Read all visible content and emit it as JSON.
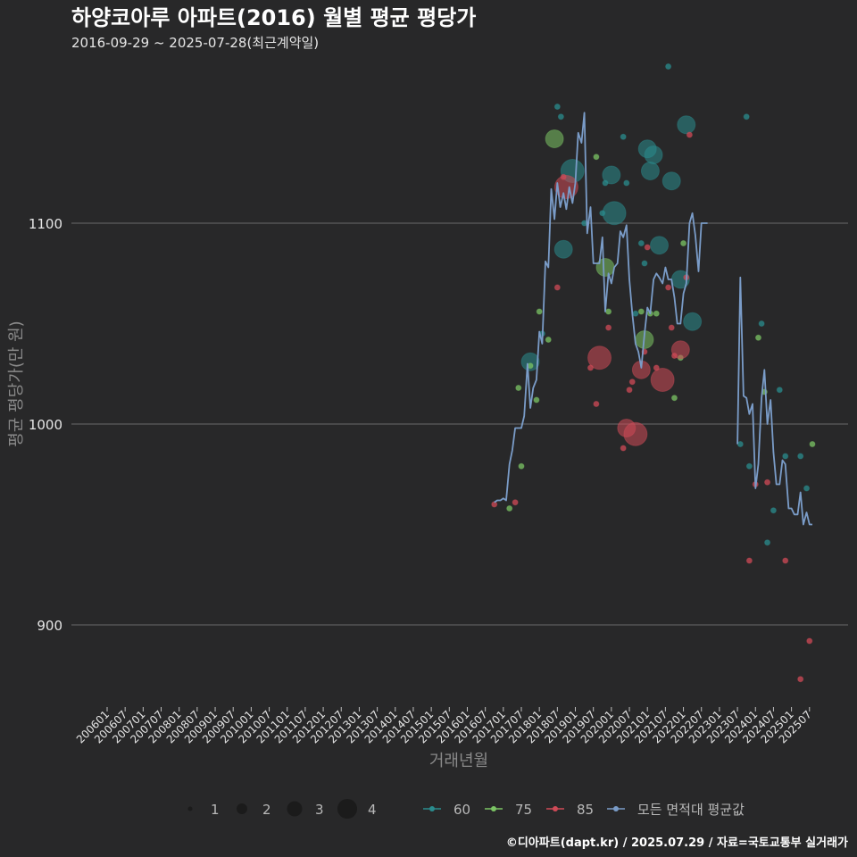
{
  "chart_data": {
    "type": "scatter",
    "title": "하양코아루 아파트(2016) 월별 평균 평당가",
    "subtitle": "2016-09-29 ~ 2025-07-28(최근계약일)",
    "xlabel": "거래년월",
    "ylabel": "평균 평당가(만 원)",
    "ylim": [
      860,
      1180
    ],
    "yticks": [
      900,
      1000,
      1100
    ],
    "x_tick_labels": [
      "200601",
      "200607",
      "200701",
      "200707",
      "200801",
      "200807",
      "200901",
      "200907",
      "201001",
      "201007",
      "201101",
      "201107",
      "201201",
      "201207",
      "201301",
      "201307",
      "201401",
      "201407",
      "201501",
      "201507",
      "201601",
      "201607",
      "201701",
      "201707",
      "201801",
      "201807",
      "201901",
      "201907",
      "202001",
      "202007",
      "202101",
      "202107",
      "202201",
      "202207",
      "202301",
      "202307",
      "202401",
      "202407",
      "202501",
      "202507"
    ],
    "size_legend": {
      "values": [
        1,
        2,
        3,
        4
      ]
    },
    "color_legend": [
      {
        "name": "60",
        "color": "#2a8c8e"
      },
      {
        "name": "75",
        "color": "#7bc464"
      },
      {
        "name": "85",
        "color": "#d04a57"
      },
      {
        "name": "모든 면적대 평균값",
        "color": "#7a9cc8"
      }
    ],
    "series": [
      {
        "name": "60",
        "color": "#2a8c8e",
        "points": [
          [
            2017.75,
            1031,
            3
          ],
          [
            2018.08,
            1045,
            1
          ],
          [
            2018.5,
            1158,
            1
          ],
          [
            2018.6,
            1153,
            1
          ],
          [
            2018.67,
            1087,
            3
          ],
          [
            2018.92,
            1126,
            4
          ],
          [
            2019.25,
            1100,
            1
          ],
          [
            2019.75,
            1105,
            1
          ],
          [
            2019.83,
            1120,
            1
          ],
          [
            2020.0,
            1124,
            3
          ],
          [
            2020.08,
            1105,
            4
          ],
          [
            2020.33,
            1143,
            1
          ],
          [
            2020.42,
            1120,
            1
          ],
          [
            2020.67,
            1055,
            1
          ],
          [
            2020.83,
            1090,
            1
          ],
          [
            2020.92,
            1080,
            1
          ],
          [
            2021.0,
            1137,
            3
          ],
          [
            2021.08,
            1126,
            3
          ],
          [
            2021.17,
            1134,
            3
          ],
          [
            2021.33,
            1089,
            3
          ],
          [
            2021.58,
            1178,
            1
          ],
          [
            2021.67,
            1121,
            3
          ],
          [
            2021.92,
            1072,
            3
          ],
          [
            2022.08,
            1149,
            3
          ],
          [
            2022.25,
            1051,
            3
          ],
          [
            2023.58,
            990,
            1
          ],
          [
            2023.75,
            1153,
            1
          ],
          [
            2023.83,
            979,
            1
          ],
          [
            2024.17,
            1050,
            1
          ],
          [
            2024.33,
            941,
            1
          ],
          [
            2024.5,
            957,
            1
          ],
          [
            2024.67,
            1017,
            1
          ],
          [
            2024.83,
            984,
            1
          ],
          [
            2025.25,
            984,
            1
          ],
          [
            2025.42,
            968,
            1
          ]
        ]
      },
      {
        "name": "75",
        "color": "#7bc464",
        "points": [
          [
            2017.17,
            958,
            1
          ],
          [
            2017.42,
            1018,
            1
          ],
          [
            2017.5,
            979,
            1
          ],
          [
            2017.75,
            1029,
            1
          ],
          [
            2017.92,
            1012,
            1
          ],
          [
            2018.0,
            1056,
            1
          ],
          [
            2018.25,
            1042,
            1
          ],
          [
            2018.42,
            1142,
            3
          ],
          [
            2019.58,
            1133,
            1
          ],
          [
            2019.83,
            1078,
            3
          ],
          [
            2019.92,
            1056,
            1
          ],
          [
            2020.83,
            1056,
            1
          ],
          [
            2020.92,
            1042,
            3
          ],
          [
            2021.08,
            1055,
            1
          ],
          [
            2021.25,
            1055,
            1
          ],
          [
            2021.75,
            1013,
            1
          ],
          [
            2021.92,
            1033,
            1
          ],
          [
            2022.0,
            1090,
            1
          ],
          [
            2024.08,
            1043,
            1
          ],
          [
            2024.25,
            1016,
            1
          ],
          [
            2025.58,
            990,
            1
          ]
        ]
      },
      {
        "name": "85",
        "color": "#d04a57",
        "points": [
          [
            2016.75,
            960,
            1
          ],
          [
            2017.33,
            961,
            1
          ],
          [
            2018.5,
            1068,
            1
          ],
          [
            2018.67,
            1123,
            1
          ],
          [
            2018.75,
            1118,
            4
          ],
          [
            2019.42,
            1028,
            1
          ],
          [
            2019.58,
            1010,
            1
          ],
          [
            2019.67,
            1033,
            4
          ],
          [
            2019.92,
            1048,
            1
          ],
          [
            2020.33,
            988,
            1
          ],
          [
            2020.42,
            998,
            3
          ],
          [
            2020.5,
            1017,
            1
          ],
          [
            2020.58,
            1021,
            1
          ],
          [
            2020.67,
            995,
            4
          ],
          [
            2020.83,
            1027,
            3
          ],
          [
            2020.92,
            1036,
            1
          ],
          [
            2021.0,
            1088,
            1
          ],
          [
            2021.25,
            1028,
            1
          ],
          [
            2021.42,
            1022,
            4
          ],
          [
            2021.58,
            1068,
            1
          ],
          [
            2021.67,
            1048,
            1
          ],
          [
            2021.75,
            1034,
            1
          ],
          [
            2021.92,
            1037,
            3
          ],
          [
            2022.08,
            1073,
            1
          ],
          [
            2022.17,
            1144,
            1
          ],
          [
            2023.83,
            932,
            1
          ],
          [
            2024.0,
            970,
            1
          ],
          [
            2024.33,
            971,
            1
          ],
          [
            2024.83,
            932,
            1
          ],
          [
            2025.25,
            873,
            1
          ],
          [
            2025.5,
            892,
            1
          ]
        ]
      }
    ],
    "average_series": {
      "name": "모든 면적대 평균값",
      "color": "#7a9cc8",
      "segments": [
        [
          [
            2016.75,
            961
          ],
          [
            2016.83,
            962
          ],
          [
            2016.92,
            962
          ],
          [
            2017.0,
            963
          ],
          [
            2017.08,
            962
          ],
          [
            2017.17,
            980
          ],
          [
            2017.25,
            987
          ],
          [
            2017.33,
            998
          ],
          [
            2017.42,
            998
          ],
          [
            2017.5,
            998
          ],
          [
            2017.58,
            1004
          ],
          [
            2017.67,
            1030
          ],
          [
            2017.75,
            1008
          ],
          [
            2017.83,
            1018
          ],
          [
            2017.92,
            1022
          ],
          [
            2018.0,
            1046
          ],
          [
            2018.08,
            1040
          ],
          [
            2018.17,
            1081
          ],
          [
            2018.25,
            1078
          ],
          [
            2018.33,
            1117
          ],
          [
            2018.42,
            1102
          ],
          [
            2018.5,
            1120
          ],
          [
            2018.58,
            1108
          ],
          [
            2018.67,
            1115
          ],
          [
            2018.75,
            1107
          ],
          [
            2018.83,
            1118
          ],
          [
            2018.92,
            1110
          ],
          [
            2019.0,
            1120
          ],
          [
            2019.08,
            1145
          ],
          [
            2019.17,
            1140
          ],
          [
            2019.25,
            1155
          ],
          [
            2019.33,
            1095
          ],
          [
            2019.42,
            1108
          ],
          [
            2019.5,
            1080
          ],
          [
            2019.58,
            1080
          ],
          [
            2019.67,
            1080
          ],
          [
            2019.75,
            1093
          ],
          [
            2019.83,
            1056
          ],
          [
            2019.92,
            1075
          ],
          [
            2020.0,
            1070
          ],
          [
            2020.08,
            1078
          ],
          [
            2020.17,
            1080
          ],
          [
            2020.25,
            1096
          ],
          [
            2020.33,
            1093
          ],
          [
            2020.42,
            1099
          ],
          [
            2020.5,
            1072
          ],
          [
            2020.58,
            1055
          ],
          [
            2020.67,
            1040
          ],
          [
            2020.75,
            1036
          ],
          [
            2020.83,
            1028
          ],
          [
            2020.92,
            1045
          ],
          [
            2021.0,
            1058
          ],
          [
            2021.08,
            1055
          ],
          [
            2021.17,
            1072
          ],
          [
            2021.25,
            1075
          ],
          [
            2021.33,
            1073
          ],
          [
            2021.42,
            1070
          ],
          [
            2021.5,
            1078
          ],
          [
            2021.58,
            1072
          ],
          [
            2021.67,
            1072
          ],
          [
            2021.75,
            1063
          ],
          [
            2021.83,
            1050
          ],
          [
            2021.92,
            1050
          ],
          [
            2022.0,
            1065
          ],
          [
            2022.08,
            1070
          ],
          [
            2022.17,
            1100
          ],
          [
            2022.25,
            1105
          ],
          [
            2022.33,
            1094
          ],
          [
            2022.42,
            1076
          ],
          [
            2022.5,
            1100
          ],
          [
            2022.58,
            1100
          ],
          [
            2022.67,
            1100
          ]
        ],
        [
          [
            2023.5,
            990
          ],
          [
            2023.58,
            1073
          ],
          [
            2023.67,
            1014
          ],
          [
            2023.75,
            1013
          ],
          [
            2023.83,
            1005
          ],
          [
            2023.92,
            1010
          ],
          [
            2024.0,
            968
          ],
          [
            2024.08,
            980
          ],
          [
            2024.17,
            1013
          ],
          [
            2024.25,
            1027
          ],
          [
            2024.33,
            1000
          ],
          [
            2024.42,
            1012
          ],
          [
            2024.5,
            986
          ],
          [
            2024.58,
            970
          ],
          [
            2024.67,
            970
          ],
          [
            2024.75,
            982
          ],
          [
            2024.83,
            980
          ],
          [
            2024.92,
            958
          ],
          [
            2025.0,
            958
          ],
          [
            2025.08,
            955
          ],
          [
            2025.17,
            955
          ],
          [
            2025.25,
            966
          ],
          [
            2025.33,
            950
          ],
          [
            2025.42,
            956
          ],
          [
            2025.5,
            950
          ],
          [
            2025.58,
            950
          ]
        ]
      ]
    }
  },
  "credit": "©디아파트(dapt.kr) / 2025.07.29 / 자료=국토교통부 실거래가"
}
